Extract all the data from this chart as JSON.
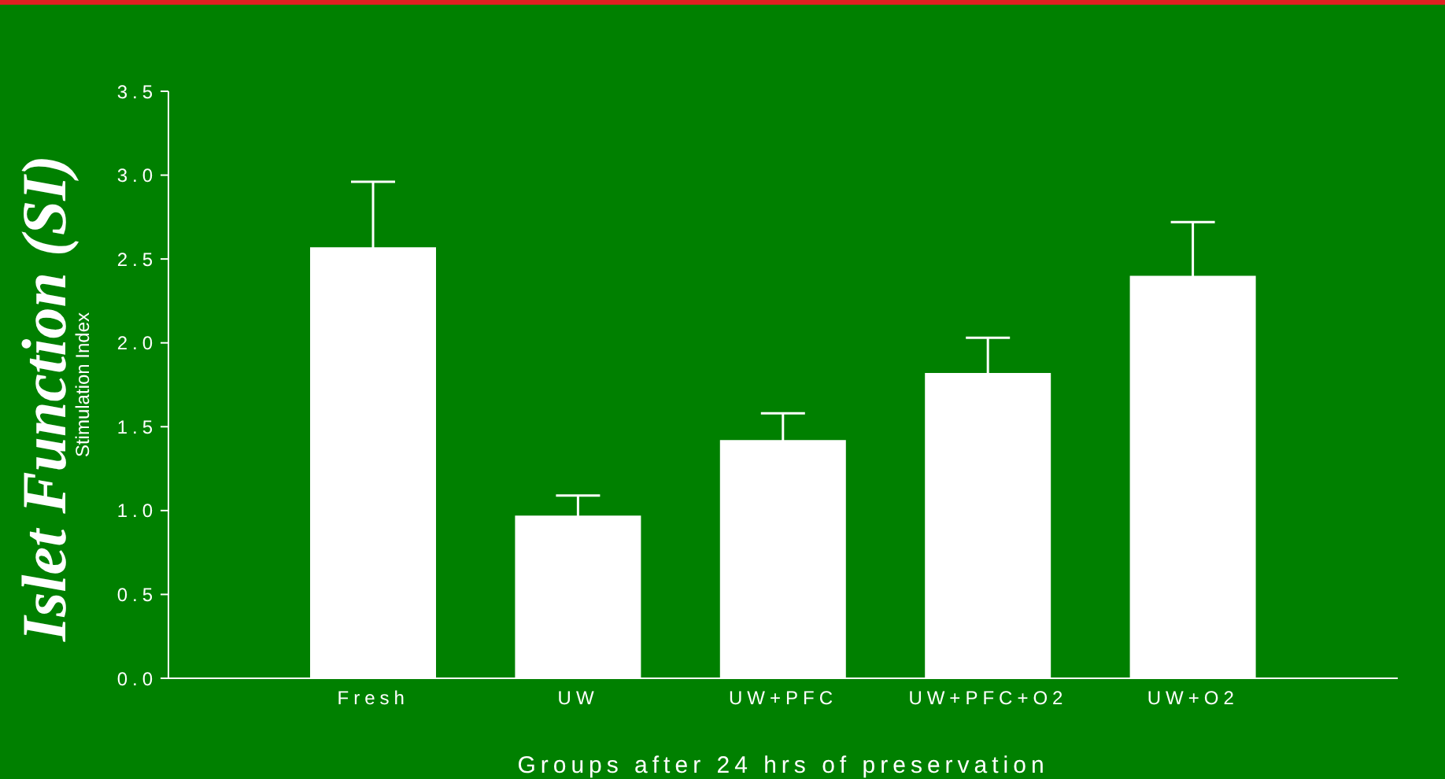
{
  "chart_data": {
    "type": "bar",
    "title": "Islet Function (SI)",
    "ylabel": "Stimulation Index",
    "xlabel": "Groups after 24 hrs of preservation",
    "categories": [
      "Fresh",
      "UW",
      "UW+PFC",
      "UW+PFC+O2",
      "UW+O2"
    ],
    "values": [
      2.57,
      0.97,
      1.42,
      1.82,
      2.4
    ],
    "errors": [
      0.39,
      0.12,
      0.16,
      0.21,
      0.32
    ],
    "color": "#ffffff",
    "ylim": [
      0,
      3.5
    ],
    "yticks": [
      {
        "value": 0,
        "label": "0.0"
      },
      0.5,
      {
        "value": 1,
        "label": "1.0"
      },
      1.5,
      {
        "value": 2,
        "label": "2.0"
      },
      2.5,
      {
        "value": 3,
        "label": "3.0"
      },
      3.5
    ],
    "grid": false
  }
}
